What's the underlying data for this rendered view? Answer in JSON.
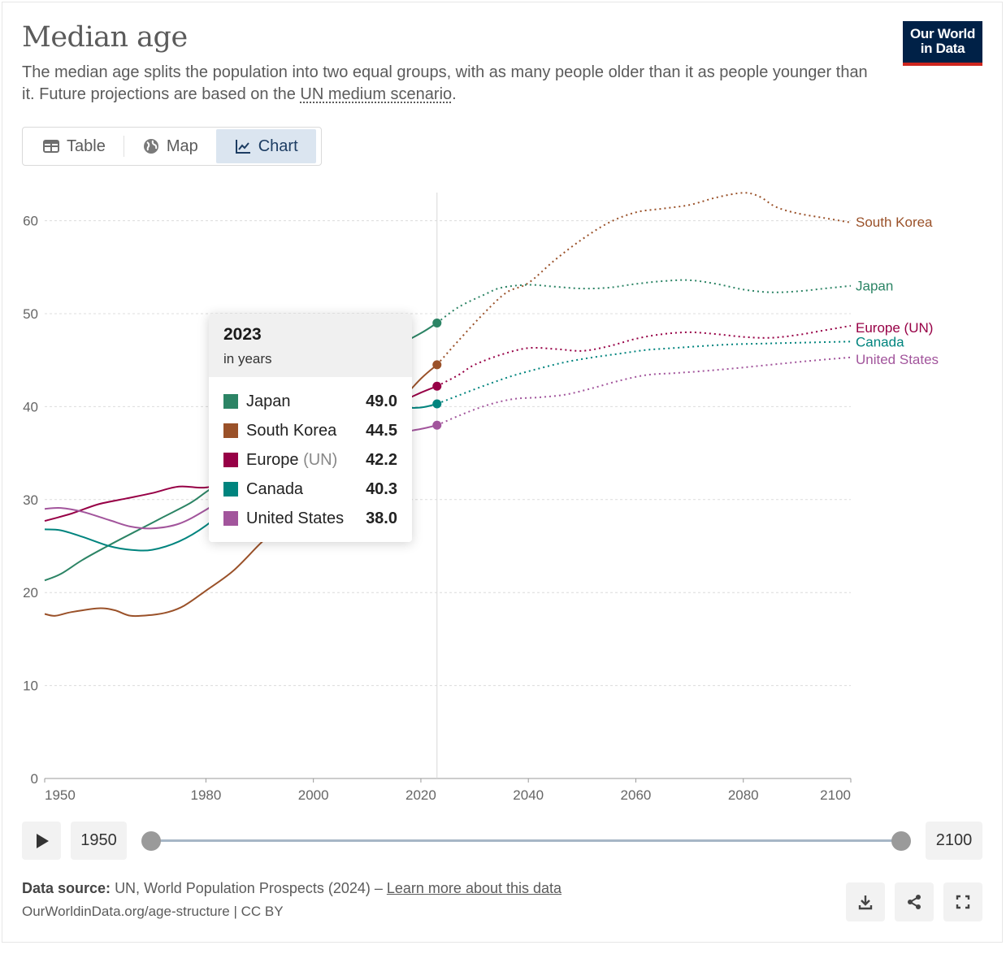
{
  "header": {
    "title": "Median age",
    "subtitle_before": "The median age splits the population into two equal groups, with as many people older than it as people younger than it. Future projections are based on the ",
    "subtitle_link": "UN medium scenario",
    "subtitle_after": ".",
    "logo_line1": "Our World",
    "logo_line2": "in Data"
  },
  "tabs": [
    {
      "label": "Table",
      "icon": "table-icon"
    },
    {
      "label": "Map",
      "icon": "globe-icon"
    },
    {
      "label": "Chart",
      "icon": "line-chart-icon",
      "active": true
    }
  ],
  "tooltip": {
    "year": "2023",
    "unit": "in years",
    "rows": [
      {
        "name": "Japan",
        "value": "49.0",
        "color": "#2c8465"
      },
      {
        "name": "South Korea",
        "value": "44.5",
        "color": "#9a5129"
      },
      {
        "name": "Europe",
        "name_suffix": "(UN)",
        "value": "42.2",
        "color": "#970046"
      },
      {
        "name": "Canada",
        "value": "40.3",
        "color": "#00847e"
      },
      {
        "name": "United States",
        "value": "38.0",
        "color": "#a2559c"
      }
    ]
  },
  "timeline": {
    "start_label": "1950",
    "end_label": "2100",
    "range": [
      1950,
      2100
    ]
  },
  "footer": {
    "source_label": "Data source:",
    "source_text": "UN, World Population Prospects (2024) – ",
    "source_link": "Learn more about this data",
    "url": "OurWorldinData.org/age-structure | CC BY"
  },
  "icons": [
    "play-icon",
    "download-icon",
    "share-icon",
    "fullscreen-icon"
  ],
  "chart_data": {
    "type": "line",
    "title": "Median age",
    "xlim": [
      1950,
      2100
    ],
    "ylim": [
      0,
      63
    ],
    "x_ticks": [
      1950,
      1980,
      2000,
      2020,
      2040,
      2060,
      2080,
      2100
    ],
    "y_ticks": [
      0,
      10,
      20,
      30,
      40,
      50,
      60
    ],
    "grid": "horizontal dashed",
    "highlight_year": 2023,
    "projection_start": 2023,
    "legend": "line-end labels",
    "series": [
      {
        "name": "South Korea",
        "color": "#9a5129",
        "points": [
          [
            1950,
            17.7
          ],
          [
            1952,
            17.5
          ],
          [
            1955,
            17.9
          ],
          [
            1960,
            18.3
          ],
          [
            1963,
            18.1
          ],
          [
            1966,
            17.5
          ],
          [
            1970,
            17.6
          ],
          [
            1973,
            17.9
          ],
          [
            1976,
            18.6
          ],
          [
            1980,
            20.2
          ],
          [
            1985,
            22.3
          ],
          [
            1990,
            25.2
          ],
          [
            1995,
            28.0
          ],
          [
            2000,
            30.9
          ],
          [
            2005,
            33.9
          ],
          [
            2010,
            37.0
          ],
          [
            2015,
            39.9
          ],
          [
            2020,
            43.0
          ],
          [
            2023,
            44.5
          ],
          [
            2027,
            47.1
          ],
          [
            2032,
            50.2
          ],
          [
            2036,
            52.3
          ],
          [
            2040,
            53.3
          ],
          [
            2045,
            55.8
          ],
          [
            2050,
            58.0
          ],
          [
            2055,
            59.8
          ],
          [
            2060,
            60.9
          ],
          [
            2065,
            61.3
          ],
          [
            2070,
            61.7
          ],
          [
            2075,
            62.5
          ],
          [
            2080,
            63.0
          ],
          [
            2083,
            62.6
          ],
          [
            2086,
            61.5
          ],
          [
            2090,
            60.8
          ],
          [
            2095,
            60.3
          ],
          [
            2100,
            59.8
          ]
        ]
      },
      {
        "name": "Japan",
        "color": "#2c8465",
        "points": [
          [
            1950,
            21.3
          ],
          [
            1953,
            22.0
          ],
          [
            1957,
            23.5
          ],
          [
            1962,
            25.1
          ],
          [
            1967,
            26.6
          ],
          [
            1972,
            28.1
          ],
          [
            1977,
            29.6
          ],
          [
            1980,
            30.8
          ],
          [
            1985,
            32.9
          ],
          [
            1990,
            35.4
          ],
          [
            1995,
            38.1
          ],
          [
            2000,
            40.9
          ],
          [
            2005,
            43.3
          ],
          [
            2010,
            45.0
          ],
          [
            2015,
            46.4
          ],
          [
            2020,
            47.9
          ],
          [
            2023,
            49.0
          ],
          [
            2027,
            50.7
          ],
          [
            2032,
            52.1
          ],
          [
            2035,
            52.8
          ],
          [
            2040,
            53.1
          ],
          [
            2045,
            52.9
          ],
          [
            2050,
            52.7
          ],
          [
            2055,
            52.8
          ],
          [
            2060,
            53.2
          ],
          [
            2065,
            53.5
          ],
          [
            2070,
            53.6
          ],
          [
            2075,
            53.2
          ],
          [
            2080,
            52.6
          ],
          [
            2085,
            52.3
          ],
          [
            2090,
            52.4
          ],
          [
            2095,
            52.7
          ],
          [
            2100,
            53.0
          ]
        ]
      },
      {
        "name": "Europe (UN)",
        "color": "#970046",
        "points": [
          [
            1950,
            27.7
          ],
          [
            1955,
            28.5
          ],
          [
            1960,
            29.5
          ],
          [
            1965,
            30.1
          ],
          [
            1970,
            30.7
          ],
          [
            1975,
            31.4
          ],
          [
            1980,
            31.3
          ],
          [
            1985,
            32.1
          ],
          [
            1990,
            33.2
          ],
          [
            1995,
            34.5
          ],
          [
            2000,
            36.0
          ],
          [
            2005,
            37.5
          ],
          [
            2010,
            38.9
          ],
          [
            2015,
            40.2
          ],
          [
            2020,
            41.5
          ],
          [
            2023,
            42.2
          ],
          [
            2027,
            43.4
          ],
          [
            2030,
            44.5
          ],
          [
            2035,
            45.6
          ],
          [
            2040,
            46.3
          ],
          [
            2045,
            46.2
          ],
          [
            2050,
            46.0
          ],
          [
            2055,
            46.5
          ],
          [
            2060,
            47.3
          ],
          [
            2065,
            47.8
          ],
          [
            2070,
            48.0
          ],
          [
            2075,
            47.8
          ],
          [
            2080,
            47.5
          ],
          [
            2085,
            47.4
          ],
          [
            2090,
            47.7
          ],
          [
            2095,
            48.2
          ],
          [
            2100,
            48.7
          ]
        ]
      },
      {
        "name": "Canada",
        "color": "#00847e",
        "points": [
          [
            1950,
            26.8
          ],
          [
            1953,
            26.7
          ],
          [
            1957,
            26.0
          ],
          [
            1962,
            25.0
          ],
          [
            1966,
            24.6
          ],
          [
            1970,
            24.6
          ],
          [
            1975,
            25.5
          ],
          [
            1980,
            27.2
          ],
          [
            1985,
            29.7
          ],
          [
            1990,
            32.3
          ],
          [
            1995,
            34.6
          ],
          [
            2000,
            36.6
          ],
          [
            2005,
            38.2
          ],
          [
            2010,
            39.2
          ],
          [
            2015,
            39.8
          ],
          [
            2020,
            39.9
          ],
          [
            2023,
            40.3
          ],
          [
            2027,
            41.2
          ],
          [
            2032,
            42.3
          ],
          [
            2037,
            43.3
          ],
          [
            2042,
            44.1
          ],
          [
            2047,
            44.8
          ],
          [
            2052,
            45.3
          ],
          [
            2057,
            45.7
          ],
          [
            2062,
            46.1
          ],
          [
            2067,
            46.3
          ],
          [
            2072,
            46.5
          ],
          [
            2078,
            46.7
          ],
          [
            2085,
            46.8
          ],
          [
            2092,
            46.9
          ],
          [
            2100,
            47.0
          ]
        ]
      },
      {
        "name": "United States",
        "color": "#a2559c",
        "points": [
          [
            1950,
            29.0
          ],
          [
            1953,
            29.1
          ],
          [
            1957,
            28.7
          ],
          [
            1962,
            27.8
          ],
          [
            1966,
            27.1
          ],
          [
            1970,
            26.9
          ],
          [
            1975,
            27.4
          ],
          [
            1980,
            28.9
          ],
          [
            1985,
            30.8
          ],
          [
            1990,
            32.6
          ],
          [
            1995,
            34.0
          ],
          [
            2000,
            35.2
          ],
          [
            2005,
            35.9
          ],
          [
            2010,
            36.5
          ],
          [
            2015,
            37.1
          ],
          [
            2020,
            37.6
          ],
          [
            2023,
            38.0
          ],
          [
            2027,
            39.0
          ],
          [
            2032,
            40.1
          ],
          [
            2037,
            40.8
          ],
          [
            2042,
            41.0
          ],
          [
            2047,
            41.3
          ],
          [
            2052,
            42.0
          ],
          [
            2057,
            42.8
          ],
          [
            2062,
            43.4
          ],
          [
            2067,
            43.6
          ],
          [
            2072,
            43.8
          ],
          [
            2078,
            44.1
          ],
          [
            2085,
            44.5
          ],
          [
            2092,
            44.9
          ],
          [
            2100,
            45.3
          ]
        ]
      }
    ]
  }
}
